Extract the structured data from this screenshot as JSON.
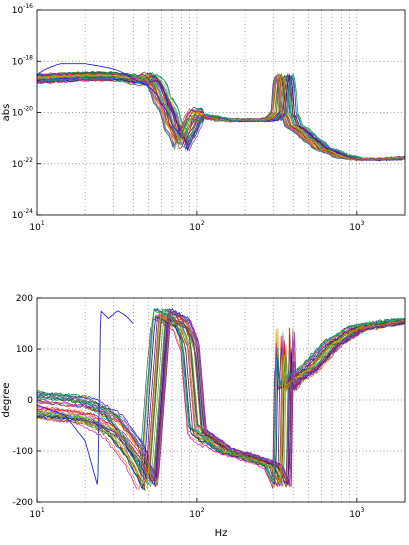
{
  "chart_data": [
    {
      "type": "line",
      "ylabel": "abs",
      "xlabel": "",
      "x_scale": "log",
      "y_scale": "log",
      "xlim": [
        10,
        2000
      ],
      "ylim": [
        1e-24,
        1e-16
      ],
      "x_ticks": [
        {
          "value": 10,
          "base": "10",
          "exp": "1"
        },
        {
          "value": 100,
          "base": "10",
          "exp": "2"
        },
        {
          "value": 1000,
          "base": "10",
          "exp": "3"
        }
      ],
      "y_ticks": [
        {
          "value": 1e-16,
          "base": "10",
          "exp": "-16"
        },
        {
          "value": 1e-18,
          "base": "10",
          "exp": "-18"
        },
        {
          "value": 1e-20,
          "base": "10",
          "exp": "-20"
        },
        {
          "value": 1e-22,
          "base": "10",
          "exp": "-22"
        },
        {
          "value": 1e-24,
          "base": "10",
          "exp": "-24"
        }
      ],
      "grid": true,
      "legend": "none",
      "series_count": 40,
      "typical_curve": {
        "x": [
          10,
          20,
          30,
          40,
          45,
          50,
          60,
          70,
          80,
          90,
          100,
          150,
          200,
          250,
          300,
          330,
          350,
          370,
          400,
          500,
          600,
          800,
          1000,
          1500,
          2000
        ],
        "y": [
          2e-19,
          2.5e-19,
          2.5e-19,
          2e-19,
          1.5e-19,
          2.5e-19,
          3e-20,
          3e-21,
          5e-22,
          2e-21,
          8e-21,
          5e-21,
          5e-21,
          5e-21,
          5.5e-21,
          1e-20,
          3e-19,
          1e-20,
          3e-21,
          1e-21,
          4e-22,
          2e-22,
          1.5e-22,
          1.5e-22,
          1.7e-22
        ]
      },
      "outlier_curve": {
        "x": [
          10,
          14,
          20,
          30,
          40,
          50,
          60,
          70,
          80
        ],
        "y": [
          3e-19,
          8e-19,
          8e-19,
          5e-19,
          2e-19,
          1e-19,
          2e-20,
          3e-21,
          1e-21
        ]
      }
    },
    {
      "type": "line",
      "ylabel": "degree",
      "xlabel": "Hz",
      "x_scale": "log",
      "y_scale": "linear",
      "xlim": [
        10,
        2000
      ],
      "ylim": [
        -200,
        200
      ],
      "x_ticks": [
        {
          "value": 10,
          "base": "10",
          "exp": "1"
        },
        {
          "value": 100,
          "base": "10",
          "exp": "2"
        },
        {
          "value": 1000,
          "base": "10",
          "exp": "3"
        }
      ],
      "y_ticks": [
        {
          "value": 200,
          "label": "200"
        },
        {
          "value": 100,
          "label": "100"
        },
        {
          "value": 0,
          "label": "0"
        },
        {
          "value": -100,
          "label": "-100"
        },
        {
          "value": -200,
          "label": "-200"
        }
      ],
      "grid": true,
      "legend": "none",
      "series_count": 40,
      "wrap_start_range": [
        40,
        85
      ],
      "typical_curve": {
        "x": [
          10,
          20,
          30,
          40,
          50,
          60,
          70,
          80,
          90,
          100,
          150,
          200,
          250,
          300,
          340,
          355,
          360,
          380,
          400,
          500,
          700,
          1000,
          1500,
          2000
        ],
        "y": [
          -10,
          -20,
          -50,
          -100,
          -160,
          170,
          160,
          150,
          110,
          -60,
          -100,
          -110,
          -120,
          -130,
          -170,
          170,
          20,
          30,
          40,
          60,
          110,
          140,
          150,
          155
        ]
      },
      "outlier_curve": {
        "x": [
          10,
          15,
          20,
          24,
          25,
          28,
          32,
          36,
          40
        ],
        "y": [
          -10,
          -30,
          -80,
          -170,
          175,
          160,
          175,
          165,
          150
        ]
      }
    }
  ]
}
